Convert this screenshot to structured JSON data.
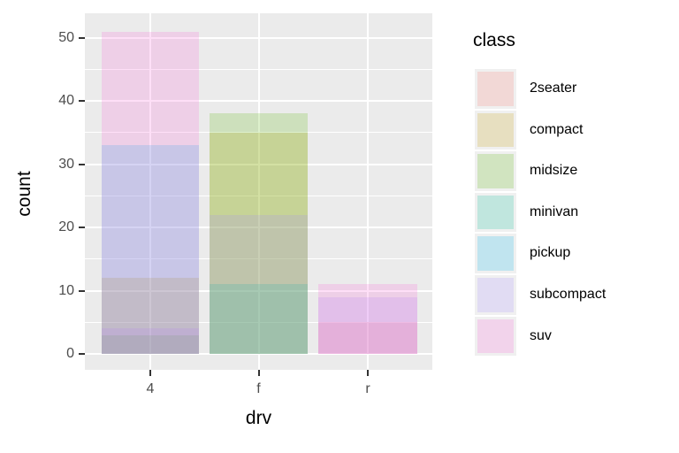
{
  "chart_data": {
    "type": "bar",
    "position": "identity",
    "alpha": 0.2,
    "title": "",
    "xlabel": "drv",
    "ylabel": "count",
    "categories": [
      "4",
      "f",
      "r"
    ],
    "yticks": [
      0,
      10,
      20,
      30,
      40,
      50
    ],
    "yminorticks": [
      5,
      15,
      25,
      35,
      45
    ],
    "ylim": [
      0,
      53
    ],
    "grid": "on",
    "series": [
      {
        "name": "2seater",
        "color": "#F8766D",
        "values": [
          0,
          0,
          5
        ]
      },
      {
        "name": "compact",
        "color": "#C49A00",
        "values": [
          12,
          35,
          0
        ]
      },
      {
        "name": "midsize",
        "color": "#53B400",
        "values": [
          3,
          38,
          0
        ]
      },
      {
        "name": "minivan",
        "color": "#00C094",
        "values": [
          0,
          11,
          0
        ]
      },
      {
        "name": "pickup",
        "color": "#00B6EB",
        "values": [
          33,
          0,
          0
        ]
      },
      {
        "name": "subcompact",
        "color": "#A58AFF",
        "values": [
          4,
          22,
          9
        ]
      },
      {
        "name": "suv",
        "color": "#FB61D7",
        "values": [
          51,
          0,
          11
        ]
      }
    ],
    "legend": {
      "title": "class",
      "position": "right"
    }
  },
  "colors": {
    "panel_bg": "#EBEBEB",
    "grid": "#FFFFFF",
    "axis_text": "#4D4D4D",
    "title_text": "#000000",
    "tick_mark": "#333333",
    "legend_key_bg": "#F0F0F0"
  }
}
